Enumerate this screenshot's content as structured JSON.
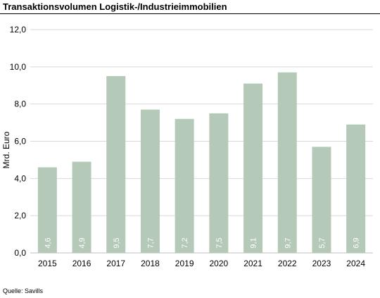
{
  "chart_data": {
    "type": "bar",
    "title": "Transaktionsvolumen Logistik-/Industrieimmobilien",
    "xlabel": "",
    "ylabel": "Mrd. Euro",
    "categories": [
      "2015",
      "2016",
      "2017",
      "2018",
      "2019",
      "2020",
      "2021",
      "2022",
      "2023",
      "2024"
    ],
    "values": [
      4.6,
      4.9,
      9.5,
      7.7,
      7.2,
      7.5,
      9.1,
      9.7,
      5.7,
      6.9
    ],
    "value_labels": [
      "4,6",
      "4,9",
      "9,5",
      "7,7",
      "7,2",
      "7,5",
      "9,1",
      "9,7",
      "5,7",
      "6,9"
    ],
    "ylim": [
      0,
      12
    ],
    "yticks": [
      0,
      2,
      4,
      6,
      8,
      10,
      12
    ],
    "ytick_labels": [
      "0,0",
      "2,0",
      "4,0",
      "6,0",
      "8,0",
      "10,0",
      "12,0"
    ],
    "grid": true,
    "legend": "none",
    "colors": {
      "bar": "#b5c9b8",
      "grid": "#d9d9d9",
      "axis": "#bfbfbf",
      "bar_label": "#ffffff",
      "text": "#000000"
    }
  },
  "source": "Quelle: Savills"
}
